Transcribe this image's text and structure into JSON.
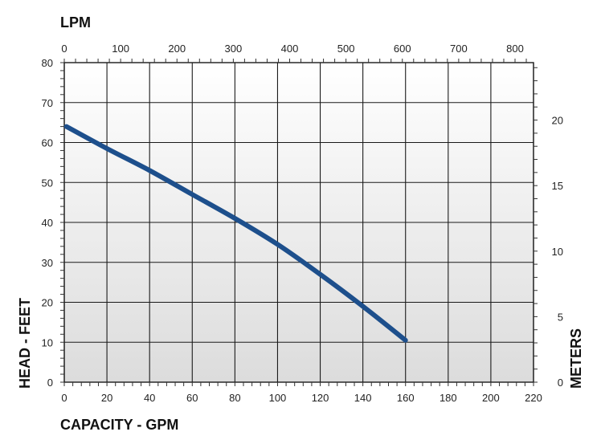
{
  "chart_data": {
    "type": "line",
    "xlabel": "CAPACITY - GPM",
    "ylabel": "HEAD - FEET",
    "top_xlabel": "LPM",
    "right_ylabel": "METERS",
    "xlim": [
      0,
      220
    ],
    "ylim": [
      0,
      80
    ],
    "x_ticks": [
      0,
      20,
      40,
      60,
      80,
      100,
      120,
      140,
      160,
      180,
      200,
      220
    ],
    "y_ticks": [
      0,
      10,
      20,
      30,
      40,
      50,
      60,
      70,
      80
    ],
    "top_xlim": [
      0,
      832.8
    ],
    "top_ticks": [
      0,
      100,
      200,
      300,
      400,
      500,
      600,
      700,
      800
    ],
    "right_ylim": [
      0,
      24.384
    ],
    "right_ticks": [
      0,
      5,
      10,
      15,
      20
    ],
    "grid": true,
    "series": [
      {
        "x": [
          1,
          20,
          40,
          60,
          80,
          100,
          120,
          140,
          160
        ],
        "y": [
          64,
          58.5,
          53,
          47,
          41,
          34.5,
          27,
          19,
          10.5
        ]
      }
    ],
    "colors": {
      "line": "#1d4f8c",
      "grid": "#1a1a1a",
      "plot_fill_top": "#ffffff",
      "plot_fill_bottom": "#dcdcdc"
    }
  }
}
